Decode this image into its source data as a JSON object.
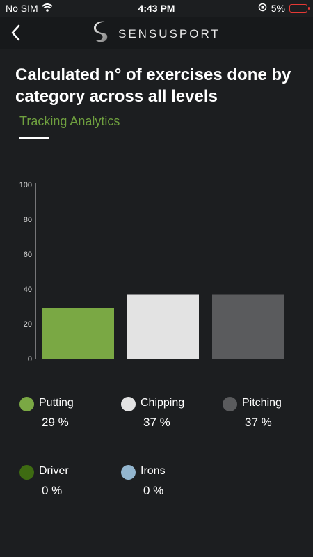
{
  "status": {
    "carrier": "No SIM",
    "time": "4:43 PM",
    "battery_text": "5%",
    "battery_level": 0.05
  },
  "nav": {
    "brand": "SENSUSPORT"
  },
  "page": {
    "title": "Calculated n° of exercises done by category across all levels",
    "subtitle": "Tracking Analytics"
  },
  "chart_data": {
    "type": "bar",
    "categories": [
      "Putting",
      "Chipping",
      "Pitching"
    ],
    "values": [
      29,
      37,
      37
    ],
    "colors": [
      "#7aa844",
      "#e3e3e3",
      "#5a5b5d"
    ],
    "ylim": [
      0,
      100
    ],
    "yticks": [
      "0",
      "20",
      "40",
      "60",
      "80",
      "100"
    ],
    "grid": false
  },
  "legend": [
    {
      "label": "Putting",
      "value": "29 %",
      "color": "#7aa844"
    },
    {
      "label": "Chipping",
      "value": "37 %",
      "color": "#e3e3e3"
    },
    {
      "label": "Pitching",
      "value": "37 %",
      "color": "#5a5b5d"
    },
    {
      "label": "Driver",
      "value": "0 %",
      "color": "#3e6b12"
    },
    {
      "label": "Irons",
      "value": "0 %",
      "color": "#93b6cf"
    }
  ]
}
